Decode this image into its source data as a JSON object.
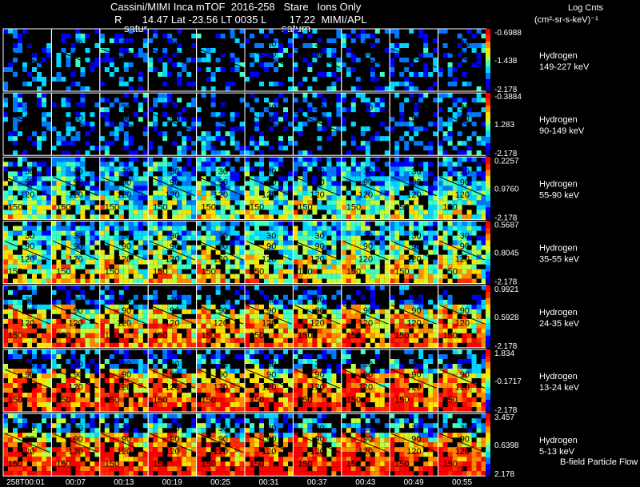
{
  "header": {
    "title": "Cassini/MIMI Inca mTOF  2016-258   Stare   Ions Only",
    "position_line": "R       14.47 Lat -23.56 LT 0035 L        17.22  MIMI/APL",
    "label_satur": "satur",
    "label_saturn": "saturn",
    "units_title": "Log Cnts",
    "units_sub": "(cm²-sr-s-keV)⁻¹",
    "footer_note": "B-field Particle Flow"
  },
  "colors": {
    "background": "#000000",
    "text": "#ffffff",
    "colormap": [
      "#0000b4",
      "#0000ff",
      "#0078ff",
      "#00d8ff",
      "#40ffc0",
      "#c0ff40",
      "#ffe000",
      "#ff8c00",
      "#ff2a00",
      "#ff0000"
    ]
  },
  "chart_data": {
    "type": "heatmap",
    "title": "Cassini/MIMI Inca mTOF  2016-258   Stare   Ions Only",
    "time_labels": [
      "258T00:01",
      "00:07",
      "00:13",
      "00:19",
      "00:25",
      "00:31",
      "00:37",
      "00:43",
      "00:49",
      "00:55"
    ],
    "contour_labels": [
      "30",
      "90",
      "120",
      "150"
    ],
    "species": "Hydrogen",
    "rows": [
      {
        "species": "Hydrogen",
        "energy": "149-227 keV",
        "cbar_max": "-0.6988",
        "cbar_mid": "-1.438",
        "cbar_min": "-2.178",
        "mean_level": 0.15
      },
      {
        "species": "Hydrogen",
        "energy": "90-149 keV",
        "cbar_max": "-0.3884",
        "cbar_mid": "1.283",
        "cbar_min": "-2.178",
        "mean_level": 0.18
      },
      {
        "species": "Hydrogen",
        "energy": "55-90 keV",
        "cbar_max": "0.2257",
        "cbar_mid": "0.9760",
        "cbar_min": "-2.178",
        "mean_level": 0.38
      },
      {
        "species": "Hydrogen",
        "energy": "35-55 keV",
        "cbar_max": "0.5687",
        "cbar_mid": "0.8045",
        "cbar_min": "-2.178",
        "mean_level": 0.5
      },
      {
        "species": "Hydrogen",
        "energy": "24-35 keV",
        "cbar_max": "0.9921",
        "cbar_mid": "0.5928",
        "cbar_min": "-2.178",
        "mean_level": 0.66
      },
      {
        "species": "Hydrogen",
        "energy": "13-24 keV",
        "cbar_max": "1.834",
        "cbar_mid": "-0.1717",
        "cbar_min": "-2.178",
        "mean_level": 0.74
      },
      {
        "species": "Hydrogen",
        "energy": "5-13 keV",
        "cbar_max": "3.457",
        "cbar_mid": "0.6398",
        "cbar_min": "2.178",
        "mean_level": 0.8
      }
    ]
  }
}
